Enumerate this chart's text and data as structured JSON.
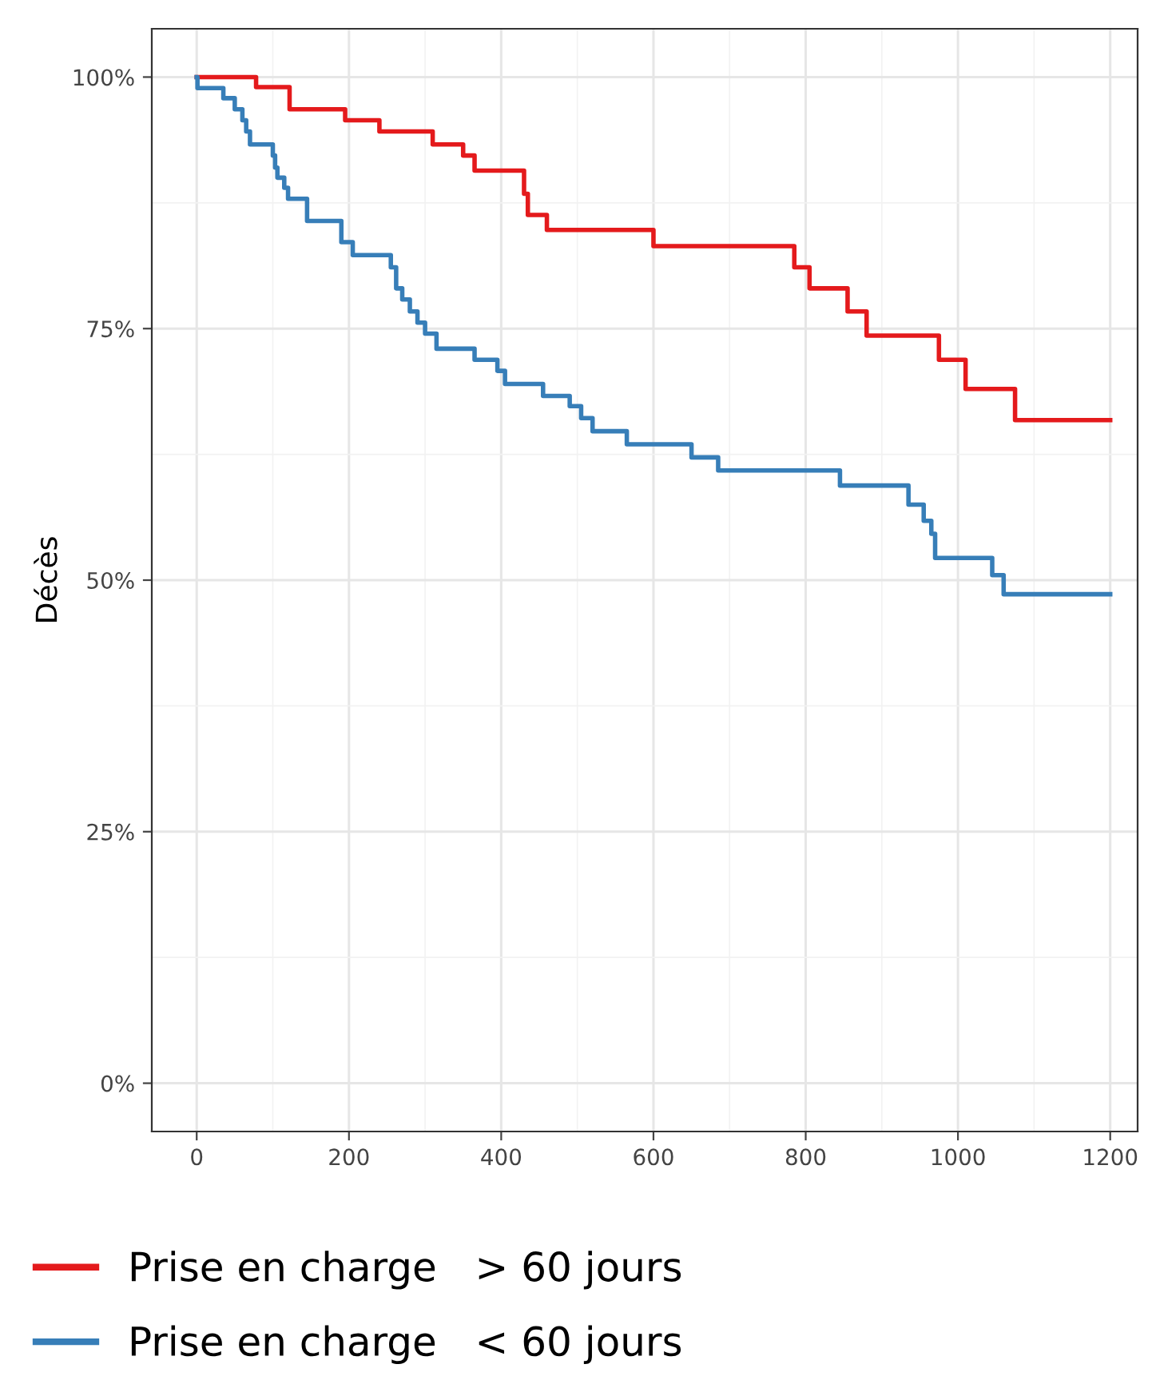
{
  "chart_data": {
    "type": "step",
    "ylabel": "Décès",
    "legend": "bottom",
    "grid": true,
    "xlim": [
      -59,
      1236
    ],
    "ylim": [
      -4.8,
      104.8
    ],
    "xticks": [
      0,
      200,
      400,
      600,
      800,
      1000,
      1200
    ],
    "yticks": [
      {
        "value": 0,
        "label": "0%"
      },
      {
        "value": 25,
        "label": "25%"
      },
      {
        "value": 50,
        "label": "50%"
      },
      {
        "value": 75,
        "label": "75%"
      },
      {
        "value": 100,
        "label": "100%"
      }
    ],
    "series": [
      {
        "name": "Prise en charge   > 60 jours",
        "color": "#e41a1c",
        "x": [
          0,
          78,
          122,
          195,
          240,
          310,
          350,
          365,
          430,
          435,
          460,
          600,
          785,
          805,
          855,
          880,
          975,
          1010,
          1075,
          1200
        ],
        "values": [
          100,
          99.0,
          96.8,
          95.7,
          94.6,
          93.3,
          92.2,
          90.7,
          88.4,
          86.3,
          84.8,
          83.2,
          81.1,
          79.0,
          76.7,
          74.3,
          71.9,
          69.0,
          65.9,
          65.9
        ]
      },
      {
        "name": "Prise en charge   < 60 jours",
        "color": "#377eb8",
        "x": [
          0,
          1,
          35,
          50,
          60,
          65,
          70,
          100,
          103,
          106,
          115,
          120,
          145,
          190,
          205,
          255,
          262,
          270,
          280,
          290,
          300,
          315,
          365,
          395,
          405,
          455,
          490,
          505,
          520,
          565,
          650,
          685,
          845,
          935,
          955,
          965,
          970,
          1045,
          1060,
          1200
        ],
        "values": [
          100,
          98.9,
          97.9,
          96.8,
          95.7,
          94.6,
          93.3,
          92.2,
          91.0,
          90.0,
          89.0,
          87.9,
          85.7,
          83.6,
          82.3,
          81.1,
          79.0,
          77.9,
          76.7,
          75.6,
          74.5,
          73.0,
          71.9,
          70.8,
          69.5,
          68.3,
          67.3,
          66.1,
          64.8,
          63.5,
          62.2,
          60.9,
          59.4,
          57.5,
          55.9,
          54.6,
          52.2,
          50.5,
          48.6,
          48.6
        ]
      }
    ]
  }
}
